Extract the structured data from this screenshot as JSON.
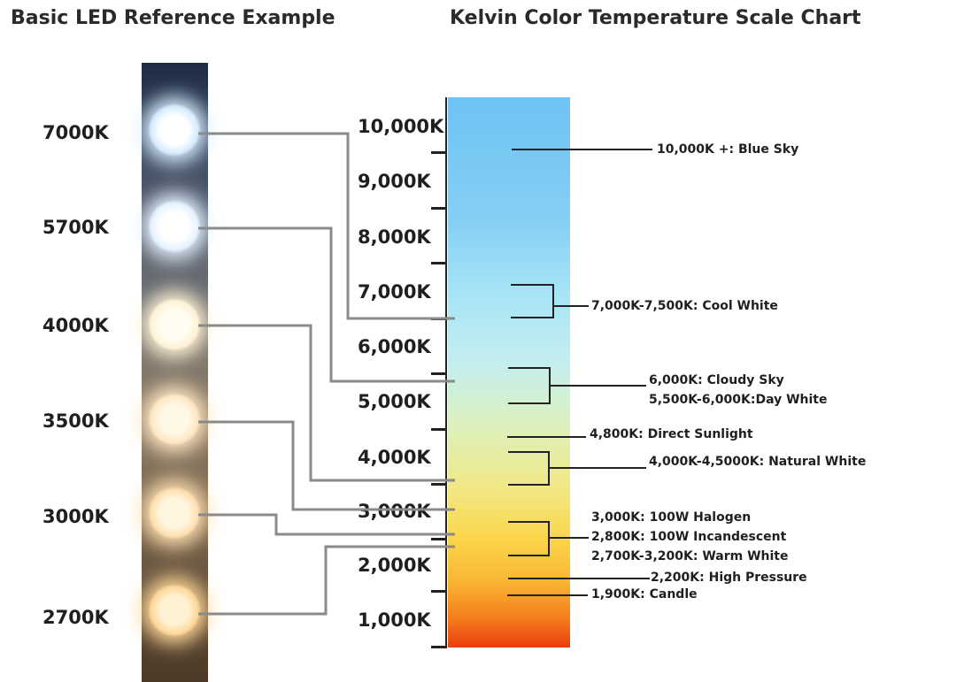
{
  "left_title": "Basic LED Reference Example",
  "right_title": "Kelvin Color Temperature Scale Chart",
  "leds": [
    {
      "label": "7000K",
      "color": "#ffffff",
      "glow": "#d6ecff"
    },
    {
      "label": "5700K",
      "color": "#ffffff",
      "glow": "#e4f2ff"
    },
    {
      "label": "4000K",
      "color": "#fffdf2",
      "glow": "#fff2d6"
    },
    {
      "label": "3500K",
      "color": "#fff8e6",
      "glow": "#ffe6c2"
    },
    {
      "label": "3000K",
      "color": "#fff6e0",
      "glow": "#ffdfb0"
    },
    {
      "label": "2700K",
      "color": "#fff2d2",
      "glow": "#ffd79a"
    }
  ],
  "scale": {
    "tick_labels": [
      "10,000K",
      "9,000K",
      "8,000K",
      "7,000K",
      "6,000K",
      "5,000K",
      "4,000K",
      "3,000K",
      "2,000K",
      "1,000K"
    ]
  },
  "annotations": [
    "10,000K +: Blue Sky",
    "7,000K-7,500K: Cool White",
    "6,000K: Cloudy Sky",
    "5,500K-6,000K:Day White",
    "4,800K: Direct Sunlight",
    "4,000K-4,5000K: Natural White",
    "3,000K: 100W Halogen",
    "2,800K: 100W Incandescent",
    "2,700K-3,200K: Warm White",
    "2,200K: High Pressure",
    "1,900K: Candle"
  ]
}
